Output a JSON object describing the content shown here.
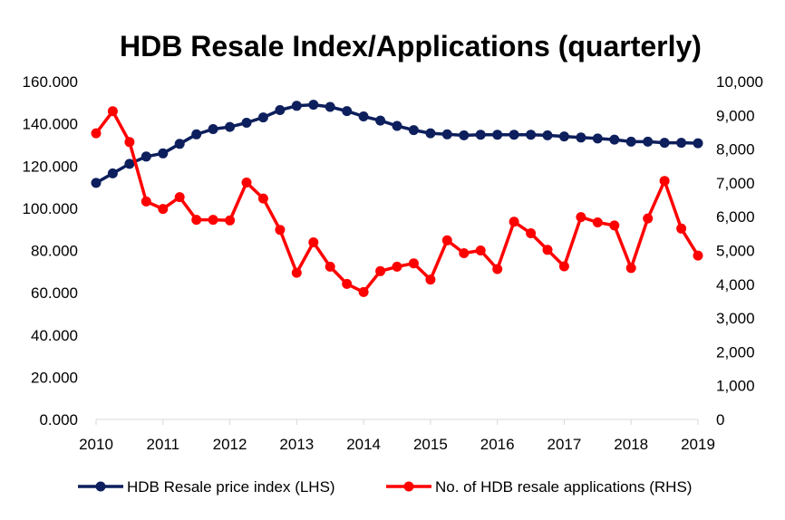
{
  "chart_data": {
    "type": "line",
    "title": "HDB Resale Index/Applications (quarterly)",
    "x_tick_labels": [
      "2010",
      "2011",
      "2012",
      "2013",
      "2014",
      "2015",
      "2016",
      "2017",
      "2018",
      "2019"
    ],
    "y_left": {
      "ylim": [
        0,
        160
      ],
      "tick_values": [
        0,
        20,
        40,
        60,
        80,
        100,
        120,
        140,
        160
      ],
      "tick_labels": [
        "0.000",
        "20.000",
        "40.000",
        "60.000",
        "80.000",
        "100.000",
        "120.000",
        "140.000",
        "160.000"
      ]
    },
    "y_right": {
      "ylim": [
        0,
        10000
      ],
      "tick_values": [
        0,
        1000,
        2000,
        3000,
        4000,
        5000,
        6000,
        7000,
        8000,
        9000,
        10000
      ],
      "tick_labels": [
        "0",
        "1,000",
        "2,000",
        "3,000",
        "4,000",
        "5,000",
        "6,000",
        "7,000",
        "8,000",
        "9,000",
        "10,000"
      ]
    },
    "x": [
      2010.0,
      2010.25,
      2010.5,
      2010.75,
      2011.0,
      2011.25,
      2011.5,
      2011.75,
      2012.0,
      2012.25,
      2012.5,
      2012.75,
      2013.0,
      2013.25,
      2013.5,
      2013.75,
      2014.0,
      2014.25,
      2014.5,
      2014.75,
      2015.0,
      2015.25,
      2015.5,
      2015.75,
      2016.0,
      2016.25,
      2016.5,
      2016.75,
      2017.0,
      2017.25,
      2017.5,
      2017.75,
      2018.0,
      2018.25,
      2018.5,
      2018.75,
      2019.0
    ],
    "series": [
      {
        "name": "HDB Resale price index (LHS)",
        "axis": "left",
        "color": "#0d1f5c",
        "values": [
          112.0,
          116.5,
          121.0,
          124.5,
          126.0,
          130.5,
          135.0,
          137.5,
          138.5,
          140.5,
          143.0,
          146.5,
          148.5,
          149.0,
          148.0,
          146.0,
          143.5,
          141.5,
          139.0,
          137.0,
          135.5,
          135.0,
          134.5,
          134.8,
          134.8,
          134.8,
          134.8,
          134.5,
          134.0,
          133.5,
          133.0,
          132.5,
          131.5,
          131.5,
          131.0,
          131.0,
          130.8
        ]
      },
      {
        "name": "No. of HDB resale applications (RHS)",
        "axis": "right",
        "color": "#ff0000",
        "values": [
          8470,
          9120,
          8210,
          6450,
          6230,
          6580,
          5910,
          5910,
          5890,
          7010,
          6540,
          5610,
          4340,
          5240,
          4520,
          4010,
          3770,
          4390,
          4520,
          4620,
          4140,
          5300,
          4920,
          5000,
          4450,
          5850,
          5510,
          5020,
          4530,
          5990,
          5830,
          5740,
          4480,
          5950,
          7060,
          5650,
          4850
        ]
      }
    ],
    "legend_position": "bottom",
    "grid": false
  }
}
